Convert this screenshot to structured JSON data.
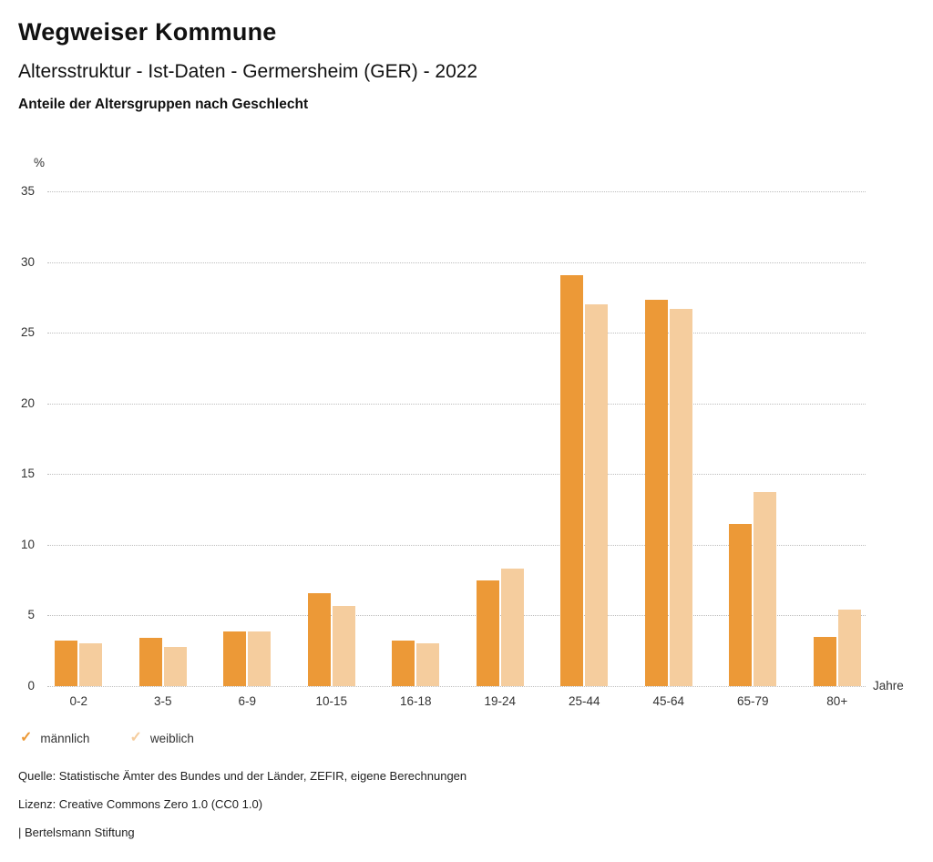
{
  "header": {
    "title": "Wegweiser Kommune",
    "subtitle": "Altersstruktur - Ist-Daten - Germersheim (GER) - 2022",
    "caption": "Anteile der Altersgruppen nach Geschlecht"
  },
  "chart_data": {
    "type": "bar",
    "title": "Anteile der Altersgruppen nach Geschlecht",
    "categories": [
      "0-2",
      "3-5",
      "6-9",
      "10-15",
      "16-18",
      "19-24",
      "25-44",
      "45-64",
      "65-79",
      "80+"
    ],
    "series": [
      {
        "name": "männlich",
        "color": "#EC9937",
        "values": [
          3.2,
          3.4,
          3.9,
          6.6,
          3.2,
          7.5,
          29.1,
          27.3,
          11.5,
          3.5
        ]
      },
      {
        "name": "weiblich",
        "color": "#F5CD9E",
        "values": [
          3.0,
          2.8,
          3.9,
          5.7,
          3.0,
          8.3,
          27.0,
          26.7,
          13.7,
          5.4
        ]
      }
    ],
    "xlabel": "Jahre",
    "ylabel": "%",
    "ylim": [
      0,
      35
    ],
    "yticks": [
      0,
      5,
      10,
      15,
      20,
      25,
      30,
      35
    ],
    "grid": "horizontal-dotted",
    "legend_position": "bottom-left",
    "legend_check_icon": "✓"
  },
  "footer": {
    "source": "Quelle: Statistische Ämter des Bundes und der Länder, ZEFIR, eigene Berechnungen",
    "license": "Lizenz: Creative Commons Zero 1.0 (CC0 1.0)",
    "attribution": "| Bertelsmann Stiftung"
  },
  "colors": {
    "grid": "#bdbdbd",
    "title_text": "#111111",
    "axis_text": "#333333"
  }
}
